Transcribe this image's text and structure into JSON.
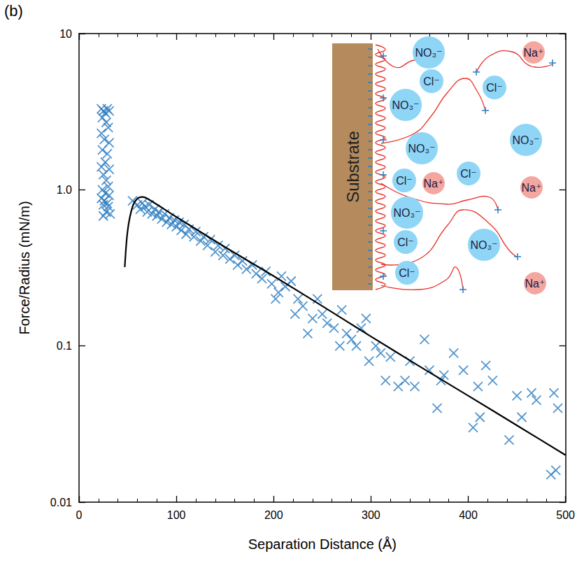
{
  "chart_data": {
    "type": "scatter",
    "panel_label": "(b)",
    "xlabel": "Separation Distance (Å)",
    "ylabel": "Force/Radius (mN/m)",
    "xlim": [
      0,
      500
    ],
    "xticks": [
      0,
      100,
      200,
      300,
      400,
      500
    ],
    "ylim": [
      0.01,
      10
    ],
    "yticks": [
      0.01,
      0.1,
      {
        "value": 1,
        "label": "1.0"
      },
      10
    ],
    "log": "y",
    "grid": false,
    "series": [
      {
        "type": "scatter",
        "marker": "x",
        "color": "#2a7cc0",
        "x": [
          23,
          25,
          27,
          29,
          31,
          24,
          28,
          30,
          23,
          26,
          31,
          24,
          29,
          27,
          23,
          31,
          25,
          28,
          30,
          24,
          27,
          31,
          23,
          26,
          29,
          25,
          30,
          28,
          32,
          25,
          55,
          60,
          63,
          65,
          68,
          70,
          72,
          75,
          78,
          80,
          82,
          85,
          88,
          90,
          93,
          95,
          98,
          100,
          103,
          105,
          108,
          110,
          113,
          118,
          120,
          125,
          128,
          132,
          135,
          140,
          143,
          148,
          150,
          155,
          160,
          163,
          168,
          172,
          178,
          182,
          188,
          192,
          198,
          202,
          205,
          208,
          212,
          218,
          222,
          225,
          230,
          235,
          240,
          245,
          250,
          255,
          262,
          268,
          270,
          275,
          280,
          285,
          290,
          295,
          298,
          305,
          310,
          315,
          320,
          328,
          335,
          340,
          345,
          355,
          360,
          368,
          372,
          375,
          385,
          395,
          405,
          410,
          412,
          418,
          425,
          442,
          450,
          455,
          465,
          470,
          485,
          488,
          490,
          492
        ],
        "values": [
          3.3,
          3.2,
          3.1,
          3.3,
          3.2,
          2.9,
          2.7,
          2.5,
          2.3,
          2.1,
          2.0,
          1.8,
          1.7,
          1.5,
          1.4,
          1.35,
          1.25,
          1.15,
          1.05,
          1.0,
          0.95,
          0.92,
          0.88,
          0.85,
          0.82,
          0.8,
          0.78,
          0.72,
          0.7,
          0.68,
          0.85,
          0.8,
          0.75,
          0.82,
          0.78,
          0.72,
          0.8,
          0.7,
          0.75,
          0.68,
          0.72,
          0.65,
          0.7,
          0.62,
          0.66,
          0.6,
          0.64,
          0.58,
          0.62,
          0.55,
          0.6,
          0.52,
          0.56,
          0.5,
          0.54,
          0.47,
          0.5,
          0.44,
          0.48,
          0.4,
          0.44,
          0.38,
          0.42,
          0.36,
          0.38,
          0.33,
          0.35,
          0.31,
          0.33,
          0.29,
          0.27,
          0.3,
          0.25,
          0.2,
          0.22,
          0.28,
          0.24,
          0.26,
          0.16,
          0.2,
          0.18,
          0.12,
          0.15,
          0.2,
          0.16,
          0.14,
          0.13,
          0.1,
          0.17,
          0.12,
          0.11,
          0.1,
          0.13,
          0.15,
          0.08,
          0.1,
          0.09,
          0.06,
          0.085,
          0.055,
          0.06,
          0.08,
          0.055,
          0.11,
          0.07,
          0.04,
          0.06,
          0.065,
          0.09,
          0.07,
          0.03,
          0.055,
          0.035,
          0.075,
          0.06,
          0.025,
          0.048,
          0.035,
          0.05,
          0.045,
          0.015,
          0.05,
          0.016,
          0.04
        ]
      },
      {
        "type": "line",
        "line_style": "solid",
        "color": "#000000",
        "x": [
          47,
          50,
          55,
          60,
          65,
          70,
          100,
          150,
          200,
          250,
          300,
          350,
          400,
          450,
          500
        ],
        "values": [
          0.32,
          0.55,
          0.78,
          0.88,
          0.9,
          0.88,
          0.67,
          0.43,
          0.28,
          0.18,
          0.115,
          0.074,
          0.048,
          0.031,
          0.02
        ]
      }
    ],
    "inset": {
      "substrate_label": "Substrate",
      "substrate_color": "#b58a5c",
      "chain_color": "#e8302a",
      "charge_color": "#2a7cc0",
      "ions": [
        {
          "label": "NO₃⁻",
          "color": "#8fd6f6"
        },
        {
          "label": "Na⁺",
          "color": "#f4a6a0"
        },
        {
          "label": "Cl⁻",
          "color": "#8fd6f6"
        },
        {
          "label": "Cl⁻",
          "color": "#8fd6f6"
        },
        {
          "label": "NO₃⁻",
          "color": "#8fd6f6"
        },
        {
          "label": "NO₃⁻",
          "color": "#8fd6f6"
        },
        {
          "label": "NO₃⁻",
          "color": "#8fd6f6"
        },
        {
          "label": "Cl⁻",
          "color": "#8fd6f6"
        },
        {
          "label": "Na⁺",
          "color": "#f4a6a0"
        },
        {
          "label": "Cl⁻",
          "color": "#8fd6f6"
        },
        {
          "label": "Na⁺",
          "color": "#f4a6a0"
        },
        {
          "label": "NO₃⁻",
          "color": "#8fd6f6"
        },
        {
          "label": "Cl⁻",
          "color": "#8fd6f6"
        },
        {
          "label": "NO₃⁻",
          "color": "#8fd6f6"
        },
        {
          "label": "Na⁺",
          "color": "#f4a6a0"
        },
        {
          "label": "Cl⁻",
          "color": "#8fd6f6"
        }
      ]
    }
  }
}
